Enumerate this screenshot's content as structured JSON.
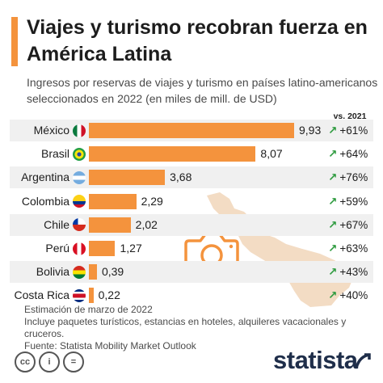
{
  "title": "Viajes y turismo recobran fuerza en América Latina",
  "subtitle": "Ingresos por reservas de viajes y turismo en países latino-americanos seleccionados en 2022 (en miles de mill. de USD)",
  "change_header": "vs. 2021",
  "chart_data": {
    "type": "bar",
    "orientation": "horizontal",
    "categories": [
      "México",
      "Brasil",
      "Argentina",
      "Colombia",
      "Chile",
      "Perú",
      "Bolivia",
      "Costa Rica"
    ],
    "values": [
      9.93,
      8.07,
      3.68,
      2.29,
      2.02,
      1.27,
      0.39,
      0.22
    ],
    "value_labels": [
      "9,93",
      "8,07",
      "3,68",
      "2,29",
      "2,02",
      "1,27",
      "0,39",
      "0,22"
    ],
    "change_vs_2021": [
      "+61%",
      "+64%",
      "+76%",
      "+59%",
      "+67%",
      "+63%",
      "+43%",
      "+40%"
    ],
    "bar_color": "#f4933d",
    "change_color": "#2e9b3f",
    "xlim": [
      0,
      10
    ]
  },
  "flags": [
    {
      "country": "México",
      "icon": "mexico-flag-icon",
      "colors": [
        "#0b7a3e",
        "#ffffff",
        "#ce1126"
      ]
    },
    {
      "country": "Brasil",
      "icon": "brazil-flag-icon",
      "colors": [
        "#229e45",
        "#f8e509",
        "#2b49a3"
      ]
    },
    {
      "country": "Argentina",
      "icon": "argentina-flag-icon",
      "colors": [
        "#74acdf",
        "#ffffff",
        "#74acdf"
      ]
    },
    {
      "country": "Colombia",
      "icon": "colombia-flag-icon",
      "colors": [
        "#fcd116",
        "#003893",
        "#ce1126"
      ]
    },
    {
      "country": "Chile",
      "icon": "chile-flag-icon",
      "colors": [
        "#0039a6",
        "#ffffff",
        "#d52b1e"
      ]
    },
    {
      "country": "Perú",
      "icon": "peru-flag-icon",
      "colors": [
        "#d91023",
        "#ffffff",
        "#d91023"
      ]
    },
    {
      "country": "Bolivia",
      "icon": "bolivia-flag-icon",
      "colors": [
        "#d52b1e",
        "#f9e300",
        "#007934"
      ]
    },
    {
      "country": "Costa Rica",
      "icon": "costa-rica-flag-icon",
      "colors": [
        "#002b7f",
        "#ce1126",
        "#ffffff"
      ]
    }
  ],
  "notes": {
    "line1": "Estimación de marzo de 2022",
    "line2": "Incluye paquetes turísticos, estancias en hoteles, alquileres vacacionales y cruceros.",
    "line3": "Fuente: Statista Mobility Market Outlook"
  },
  "footer": {
    "cc_labels": [
      "cc",
      "i",
      "="
    ],
    "logo": "statista"
  },
  "illustration": {
    "map_color": "#f3dcc4",
    "camera_color": "#f4933d"
  }
}
